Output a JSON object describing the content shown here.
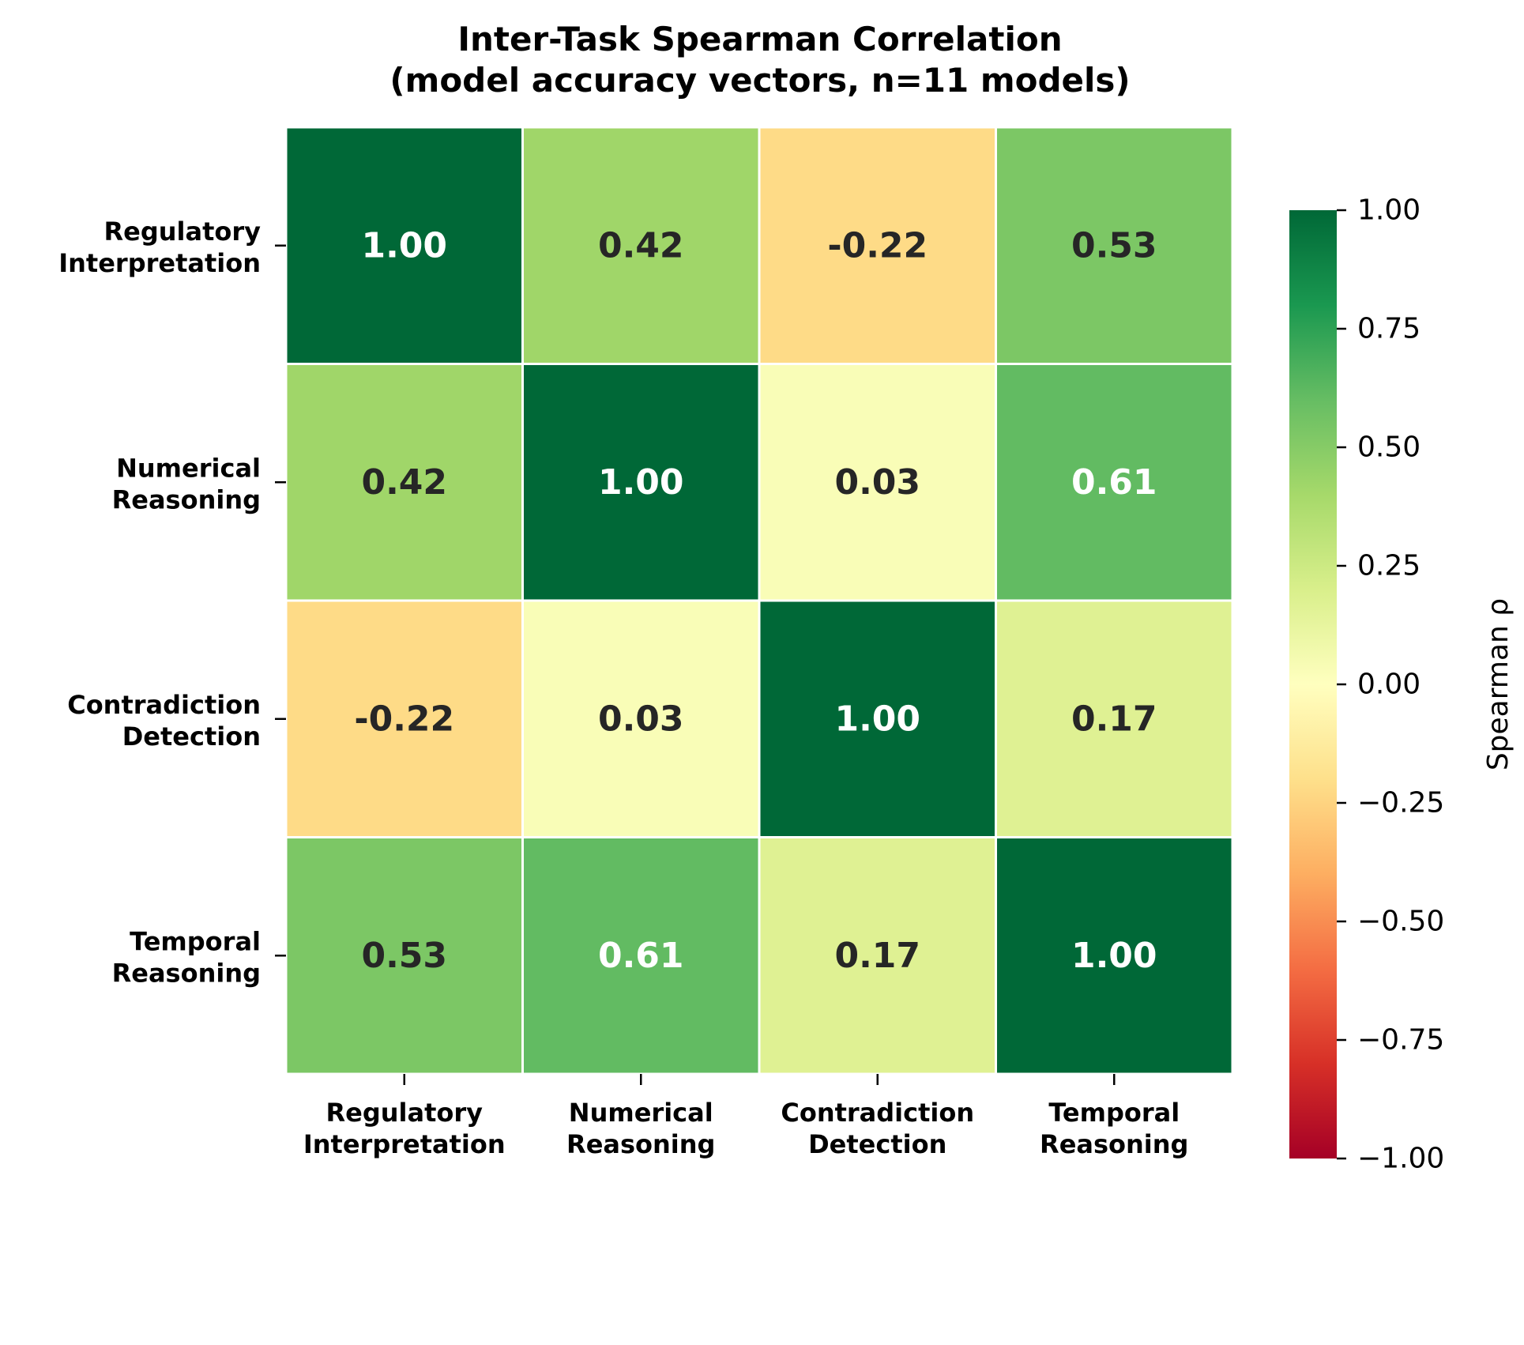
{
  "chart_data": {
    "type": "heatmap",
    "title_lines": [
      "Inter-Task Spearman Correlation",
      "(model accuracy vectors, n=11 models)"
    ],
    "row_labels": [
      [
        "Regulatory",
        "Interpretation"
      ],
      [
        "Numerical",
        "Reasoning"
      ],
      [
        "Contradiction",
        "Detection"
      ],
      [
        "Temporal",
        "Reasoning"
      ]
    ],
    "col_labels": [
      [
        "Regulatory",
        "Interpretation"
      ],
      [
        "Numerical",
        "Reasoning"
      ],
      [
        "Contradiction",
        "Detection"
      ],
      [
        "Temporal",
        "Reasoning"
      ]
    ],
    "values": [
      [
        1.0,
        0.42,
        -0.22,
        0.53
      ],
      [
        0.42,
        1.0,
        0.03,
        0.61
      ],
      [
        -0.22,
        0.03,
        1.0,
        0.17
      ],
      [
        0.53,
        0.61,
        0.17,
        1.0
      ]
    ],
    "cell_text": [
      [
        "1.00",
        "0.42",
        "-0.22",
        "0.53"
      ],
      [
        "0.42",
        "1.00",
        "0.03",
        "0.61"
      ],
      [
        "-0.22",
        "0.03",
        "1.00",
        "0.17"
      ],
      [
        "0.53",
        "0.61",
        "0.17",
        "1.00"
      ]
    ],
    "colormap": "RdYlGn",
    "vmin": -1.0,
    "vmax": 1.0,
    "colorbar": {
      "label": "Spearman ρ",
      "ticks": [
        1.0,
        0.75,
        0.5,
        0.25,
        0.0,
        -0.25,
        -0.5,
        -0.75,
        -1.0
      ],
      "tick_labels": [
        "1.00",
        "0.75",
        "0.50",
        "0.25",
        "0.00",
        "−0.25",
        "−0.50",
        "−0.75",
        "−1.00"
      ]
    },
    "cell_border_color": "#ffffff",
    "text_colors": {
      "dark": "#262626",
      "light": "#ffffff"
    }
  }
}
